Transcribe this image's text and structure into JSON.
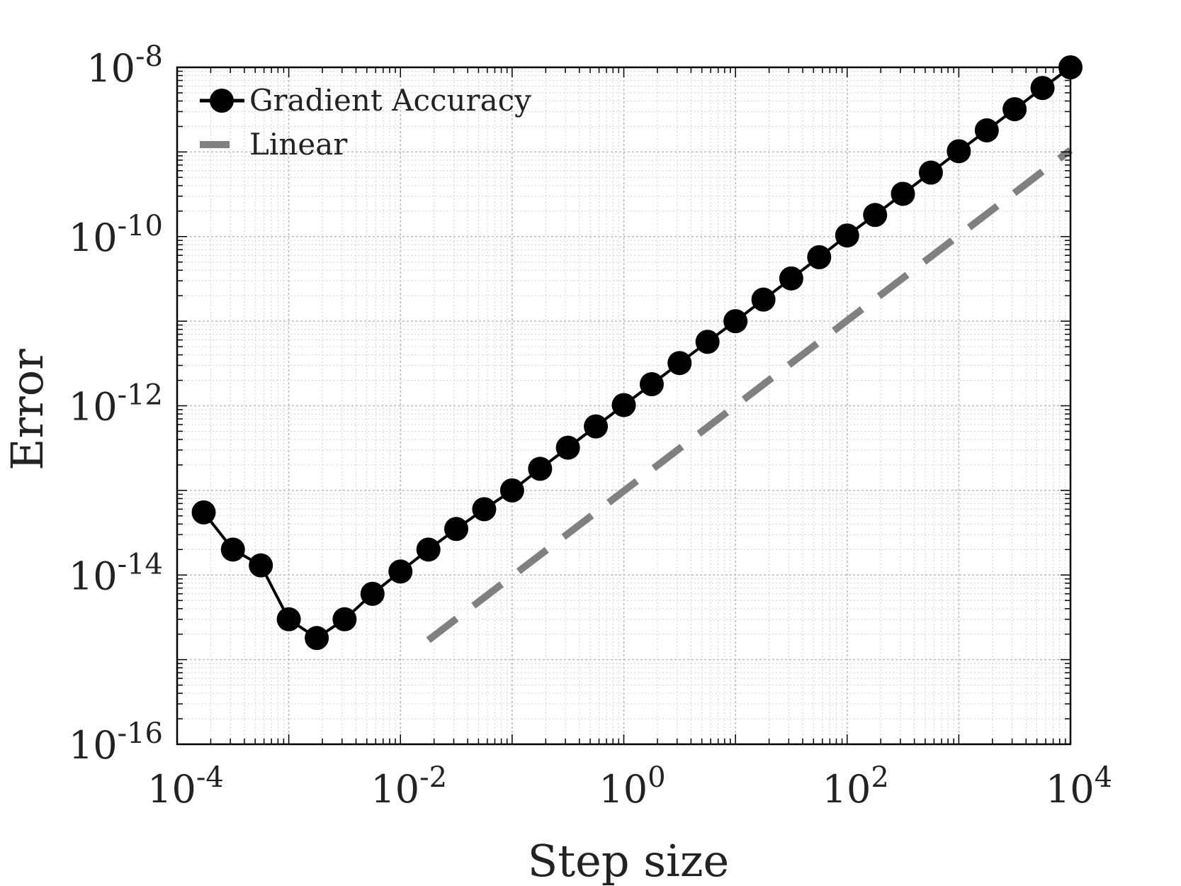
{
  "chart_data": {
    "type": "line",
    "xlabel": "Step size",
    "ylabel": "Error",
    "xscale": "log",
    "yscale": "log",
    "xlim": [
      0.0001,
      10000
    ],
    "ylim": [
      1e-16,
      1e-08
    ],
    "grid": true,
    "minor_grid": true,
    "legend_position": "top-left",
    "x_ticks": [
      {
        "value": 0.0001,
        "base": "10",
        "exp": "-4"
      },
      {
        "value": 0.01,
        "base": "10",
        "exp": "-2"
      },
      {
        "value": 1,
        "base": "10",
        "exp": "0"
      },
      {
        "value": 100,
        "base": "10",
        "exp": "2"
      },
      {
        "value": 10000,
        "base": "10",
        "exp": "4"
      }
    ],
    "y_ticks": [
      {
        "value": 1e-16,
        "base": "10",
        "exp": "-16"
      },
      {
        "value": 1e-14,
        "base": "10",
        "exp": "-14"
      },
      {
        "value": 1e-12,
        "base": "10",
        "exp": "-12"
      },
      {
        "value": 1e-10,
        "base": "10",
        "exp": "-10"
      },
      {
        "value": 1e-08,
        "base": "10",
        "exp": "-8"
      }
    ],
    "series": [
      {
        "name": "Gradient Accuracy",
        "color": "#000000",
        "style": "solid-markers",
        "x": [
          0.000173,
          0.000316,
          0.000562,
          0.001,
          0.00178,
          0.00316,
          0.00562,
          0.01,
          0.0178,
          0.0316,
          0.0562,
          0.1,
          0.178,
          0.316,
          0.562,
          1,
          1.78,
          3.16,
          5.62,
          10,
          17.8,
          31.6,
          56.2,
          100,
          178,
          316,
          562,
          1000,
          1780,
          3160,
          5620,
          10000
        ],
        "y": [
          5.5e-14,
          2e-14,
          1.3e-14,
          3e-15,
          1.8e-15,
          3e-15,
          6e-15,
          1.1e-14,
          2e-14,
          3.5e-14,
          6e-14,
          1e-13,
          1.8e-13,
          3.2e-13,
          5.7e-13,
          1.02e-12,
          1.8e-12,
          3.2e-12,
          5.7e-12,
          1e-11,
          1.8e-11,
          3.2e-11,
          5.7e-11,
          1.03e-10,
          1.8e-10,
          3.2e-10,
          5.7e-10,
          1.02e-09,
          1.8e-09,
          3.2e-09,
          5.7e-09,
          1e-08
        ]
      },
      {
        "name": "Linear",
        "color": "#808080",
        "style": "dashed",
        "x": [
          0.0178,
          10000
        ],
        "y": [
          1.7e-15,
          1.05e-09
        ]
      }
    ]
  }
}
